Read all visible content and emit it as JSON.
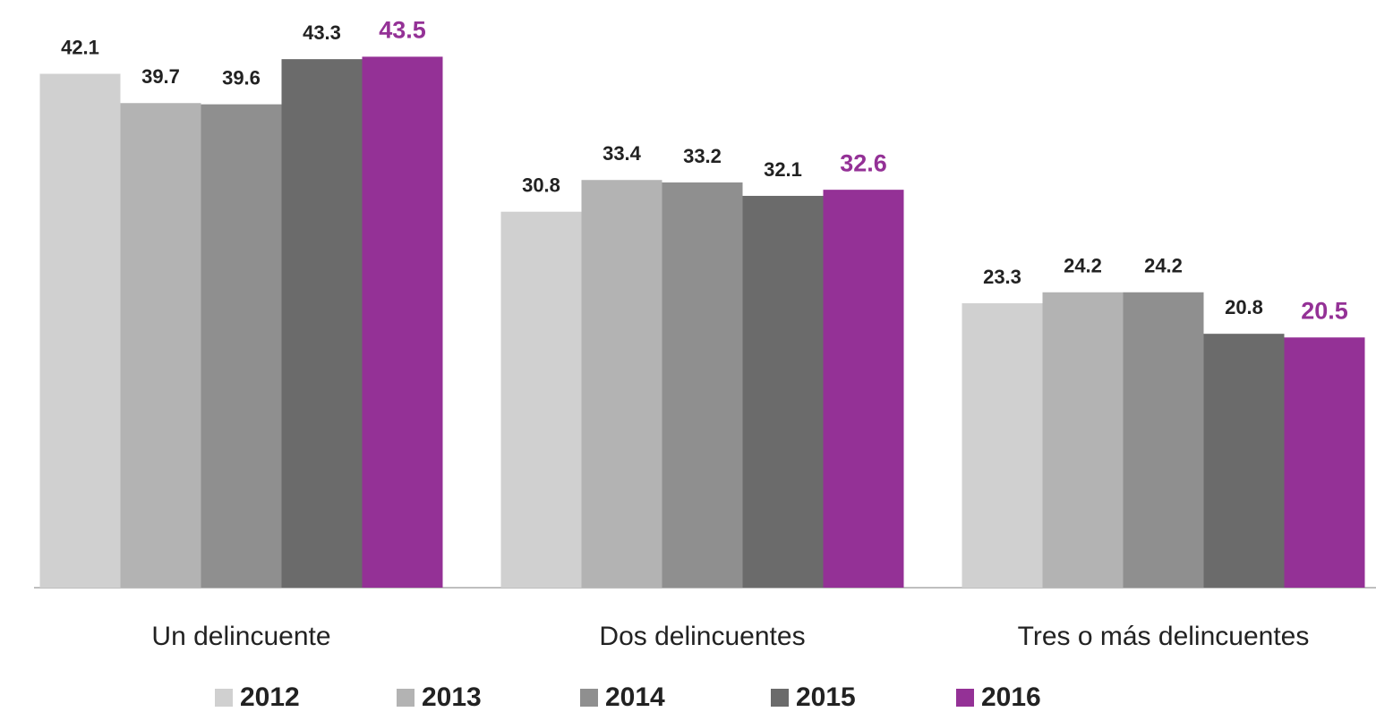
{
  "chart_data": {
    "type": "bar",
    "categories": [
      "Un delincuente",
      "Dos delincuentes",
      "Tres o más delincuentes"
    ],
    "series": [
      {
        "name": "2012",
        "color": "#d0d0d0",
        "values": [
          42.1,
          30.8,
          23.3
        ]
      },
      {
        "name": "2013",
        "color": "#b3b3b3",
        "values": [
          39.7,
          33.4,
          24.2
        ]
      },
      {
        "name": "2014",
        "color": "#8f8f8f",
        "values": [
          39.6,
          33.2,
          24.2
        ]
      },
      {
        "name": "2015",
        "color": "#6b6b6b",
        "values": [
          43.3,
          32.1,
          20.8
        ]
      },
      {
        "name": "2016",
        "color": "#943196",
        "values": [
          43.5,
          32.6,
          20.5
        ]
      }
    ],
    "ylim": [
      0,
      48
    ],
    "legend": "bottom"
  }
}
